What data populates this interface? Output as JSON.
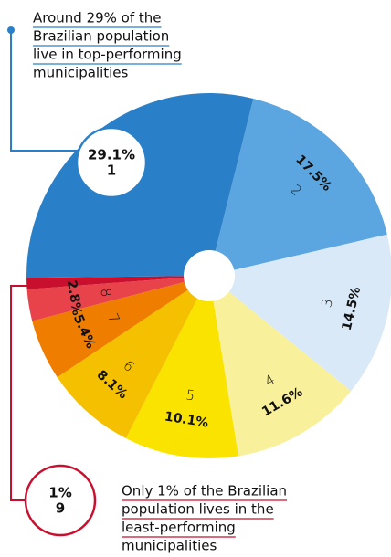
{
  "chart_data": {
    "type": "pie",
    "categories": [
      "1",
      "2",
      "3",
      "4",
      "5",
      "6",
      "7",
      "8",
      "9"
    ],
    "values": [
      29.1,
      17.5,
      14.5,
      11.6,
      10.1,
      8.1,
      5.4,
      2.8,
      1
    ],
    "value_labels": [
      "29.1%",
      "17.5%",
      "14.5%",
      "11.6%",
      "10.1%",
      "8.1%",
      "5.4%",
      "2.8%",
      "1%"
    ],
    "colors": [
      "#2a80c8",
      "#5ba6e0",
      "#d9e9f8",
      "#f8f09a",
      "#fbe300",
      "#f5c000",
      "#ef7d00",
      "#e8424a",
      "#c8102e"
    ],
    "annotations": [
      {
        "lines": [
          "Around 29% of the",
          "Brazilian population",
          "live in top-performing",
          "municipalities"
        ],
        "color": "#2a80c8"
      },
      {
        "lines": [
          "Only 1% of the Brazilian",
          "population lives in the",
          " least-performing",
          "municipalities"
        ],
        "color": "#c8102e"
      }
    ]
  }
}
